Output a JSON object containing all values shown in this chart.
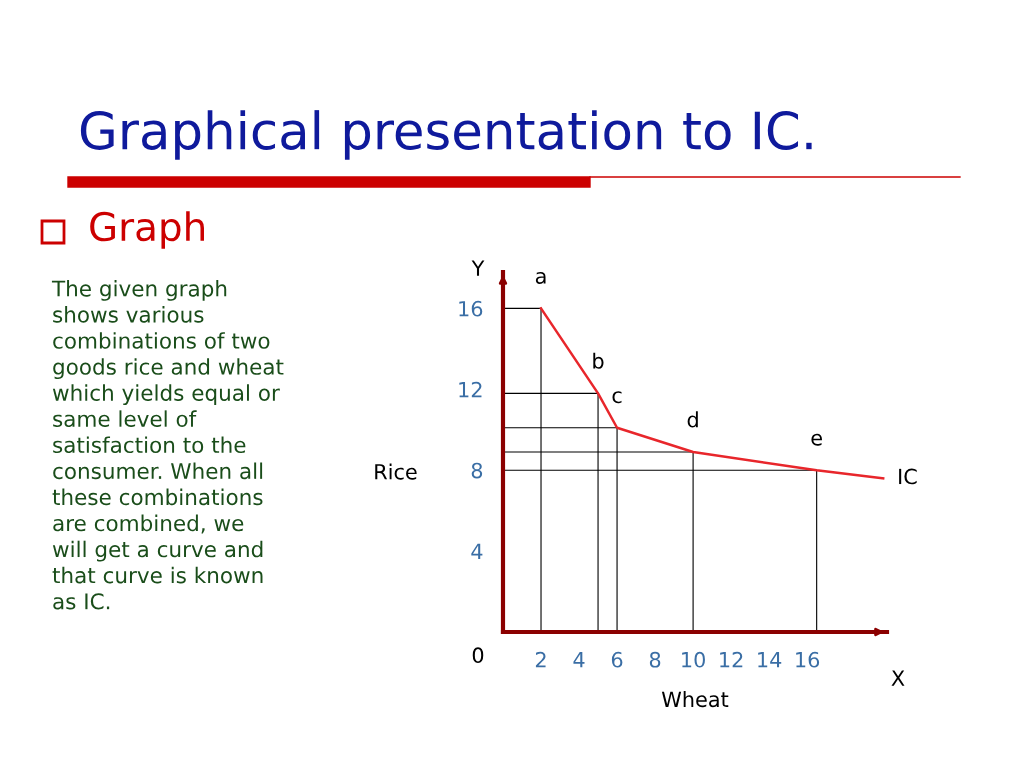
{
  "chart_data": {
    "type": "line",
    "title": "Graphical presentation to IC.",
    "subtitle": "Graph",
    "xlabel": "Wheat",
    "ylabel": "Rice",
    "series": [
      {
        "name": "IC",
        "color": "#e8262b",
        "x": [
          2,
          5,
          6,
          10,
          16.5,
          20
        ],
        "values": [
          16,
          11.8,
          10.1,
          8.9,
          8,
          7.6
        ]
      }
    ],
    "xlim": [
      0,
      20.2
    ],
    "ylim": [
      0,
      17.8
    ],
    "xticks": [
      2,
      4,
      6,
      8,
      10,
      12,
      14,
      16
    ],
    "yticks": [
      4,
      8,
      12,
      16
    ],
    "annotations": [
      "The given graph\nshows various\ncombinations of two\ngoods rice and wheat\nwhich yields equal or\nsame level of\nsatisfaction to the\nconsumer. When all\nthese combinations\nare combined, we\nwill get a curve and\nthat curve is known\nas IC.",
      "Y",
      "X",
      "0",
      {
        "text": "a",
        "x": 2,
        "y": 16
      },
      {
        "text": "b",
        "x": 5,
        "y": 11.8
      },
      {
        "text": "c",
        "x": 6,
        "y": 10.1
      },
      {
        "text": "d",
        "x": 10,
        "y": 8.9
      },
      {
        "text": "e",
        "x": 16.5,
        "y": 8
      }
    ]
  }
}
